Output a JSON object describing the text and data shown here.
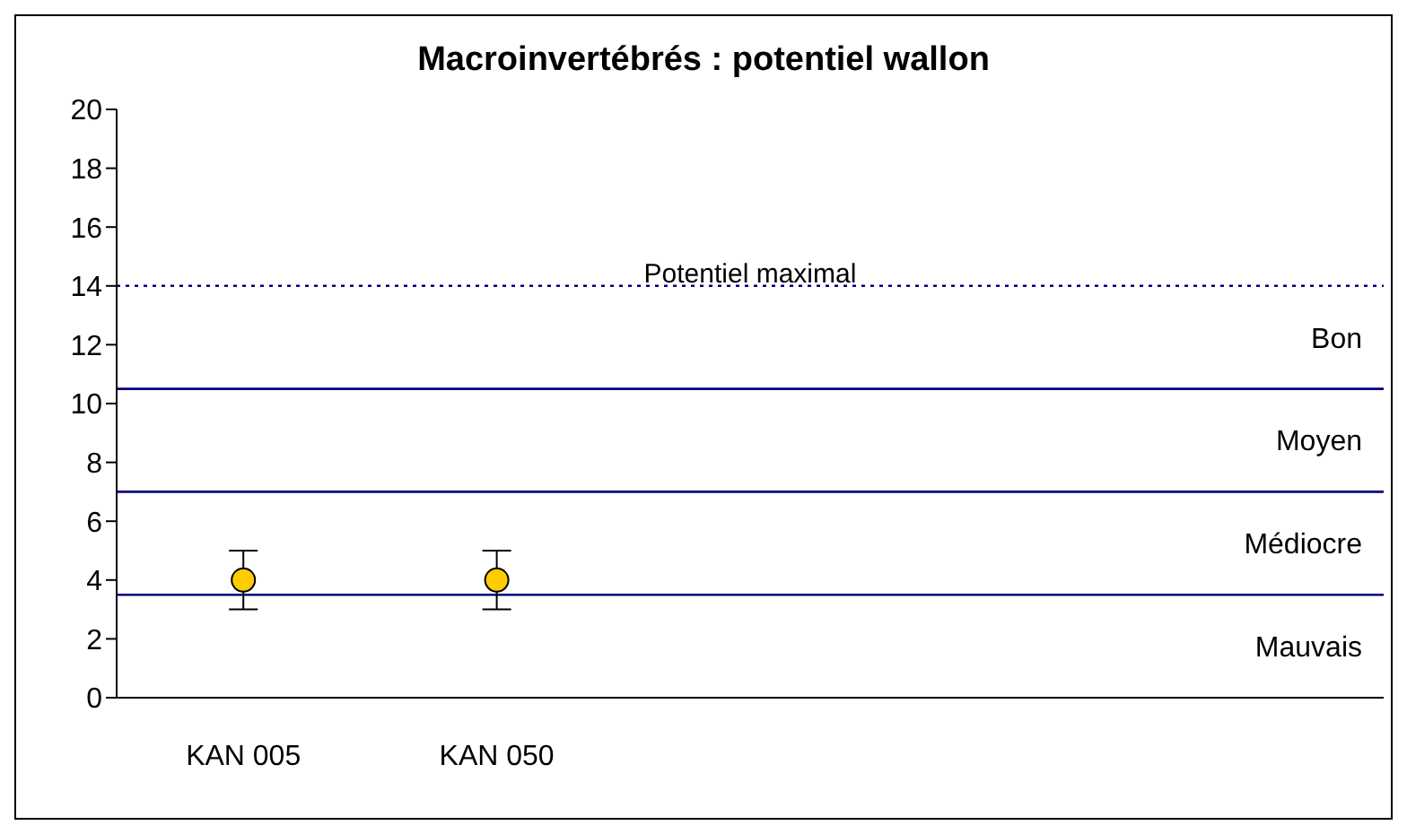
{
  "chart_data": {
    "type": "scatter",
    "title": "Macroinvertébrés : potentiel wallon",
    "categories": [
      "KAN 005",
      "KAN 050",
      null,
      null,
      null
    ],
    "series": [
      {
        "color": "#ffcc00",
        "values": [
          4,
          4,
          null,
          null,
          null
        ],
        "errors": [
          1,
          1,
          null,
          null,
          null
        ]
      }
    ],
    "marker": "circle",
    "ylim": [
      0,
      20
    ],
    "yticks": [
      0,
      2,
      4,
      6,
      8,
      10,
      12,
      14,
      16,
      18,
      20
    ],
    "grid": false,
    "legend": false,
    "ref_lines": [
      {
        "axis": "y",
        "value": 14,
        "label": "Potentiel maximal",
        "color": "#000080",
        "line_style": "dotted"
      },
      {
        "axis": "y",
        "value": 10.5,
        "color": "#000080"
      },
      {
        "axis": "y",
        "value": 7,
        "color": "#000080"
      },
      {
        "axis": "y",
        "value": 3.5,
        "color": "#000080"
      }
    ],
    "annotations": [
      "Bon",
      "Moyen",
      "Médiocre",
      "Mauvais"
    ]
  }
}
